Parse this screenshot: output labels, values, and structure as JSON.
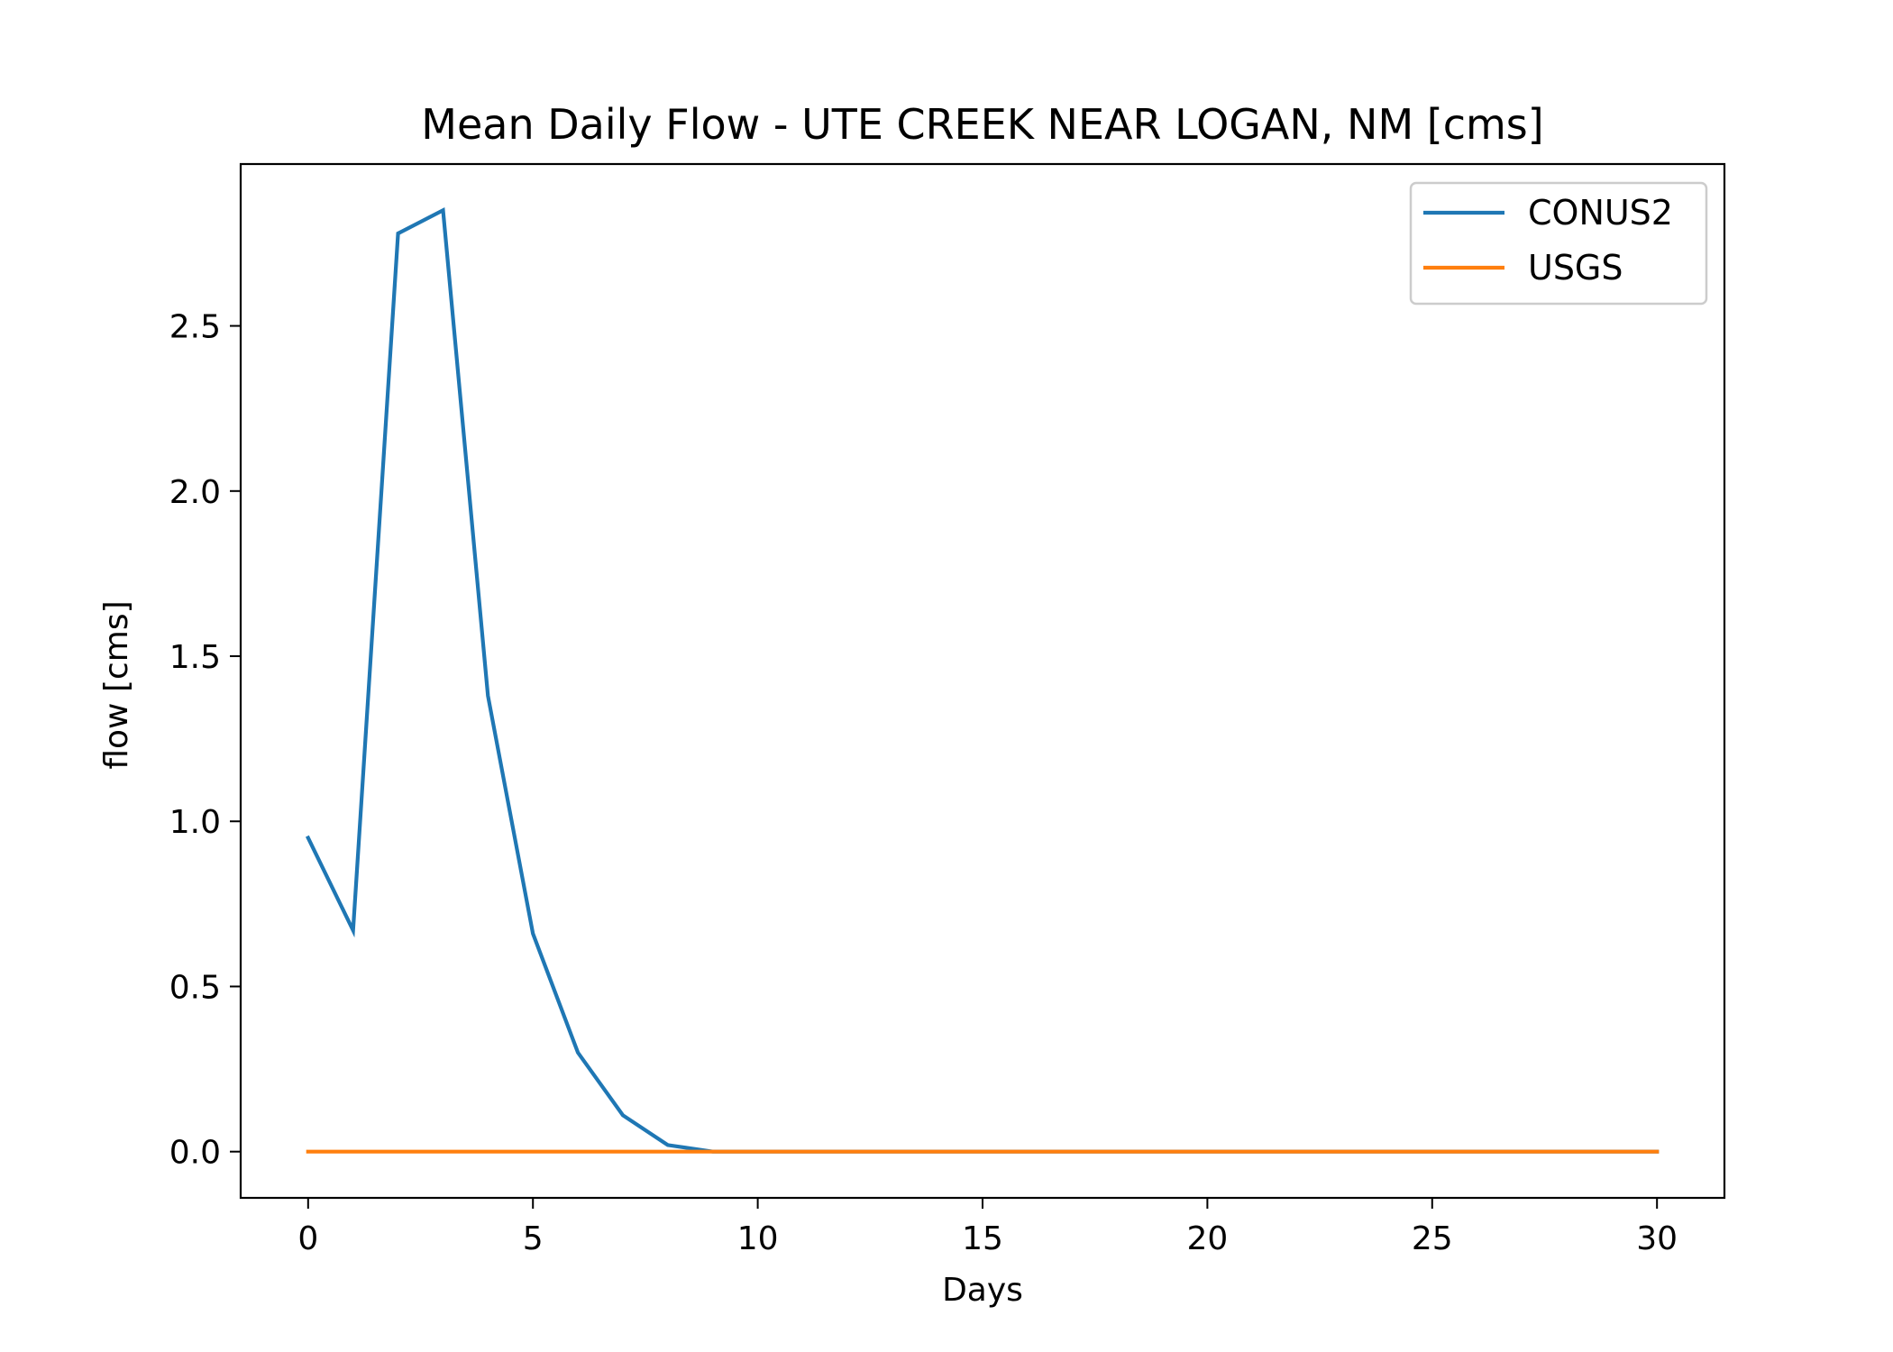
{
  "chart_data": {
    "type": "line",
    "title": "Mean Daily Flow - UTE CREEK NEAR LOGAN, NM [cms]",
    "xlabel": "Days",
    "ylabel": "flow [cms]",
    "xlim": [
      -1.5,
      31.5
    ],
    "ylim": [
      -0.14,
      2.99
    ],
    "xticks": [
      0,
      5,
      10,
      15,
      20,
      25,
      30
    ],
    "xtick_labels": [
      "0",
      "5",
      "10",
      "15",
      "20",
      "25",
      "30"
    ],
    "yticks": [
      0.0,
      0.5,
      1.0,
      1.5,
      2.0,
      2.5
    ],
    "ytick_labels": [
      "0.0",
      "0.5",
      "1.0",
      "1.5",
      "2.0",
      "2.5"
    ],
    "grid": false,
    "legend_position": "top-right",
    "series": [
      {
        "name": "CONUS2",
        "color": "#1f77b4",
        "x": [
          0,
          1,
          2,
          3,
          4,
          5,
          6,
          7,
          8,
          9,
          10,
          11,
          12,
          13,
          14,
          15,
          16,
          17,
          18,
          19,
          20,
          21,
          22,
          23,
          24,
          25,
          26,
          27,
          28,
          29,
          30
        ],
        "y": [
          0.95,
          0.67,
          2.78,
          2.85,
          1.38,
          0.66,
          0.3,
          0.11,
          0.02,
          0.0,
          0.0,
          0.0,
          0.0,
          0.0,
          0.0,
          0.0,
          0.0,
          0.0,
          0.0,
          0.0,
          0.0,
          0.0,
          0.0,
          0.0,
          0.0,
          0.0,
          0.0,
          0.0,
          0.0,
          0.0,
          0.0
        ]
      },
      {
        "name": "USGS",
        "color": "#ff7f0e",
        "x": [
          0,
          1,
          2,
          3,
          4,
          5,
          6,
          7,
          8,
          9,
          10,
          11,
          12,
          13,
          14,
          15,
          16,
          17,
          18,
          19,
          20,
          21,
          22,
          23,
          24,
          25,
          26,
          27,
          28,
          29,
          30
        ],
        "y": [
          0.0,
          0.0,
          0.0,
          0.0,
          0.0,
          0.0,
          0.0,
          0.0,
          0.0,
          0.0,
          0.0,
          0.0,
          0.0,
          0.0,
          0.0,
          0.0,
          0.0,
          0.0,
          0.0,
          0.0,
          0.0,
          0.0,
          0.0,
          0.0,
          0.0,
          0.0,
          0.0,
          0.0,
          0.0,
          0.0,
          0.0
        ]
      }
    ]
  }
}
